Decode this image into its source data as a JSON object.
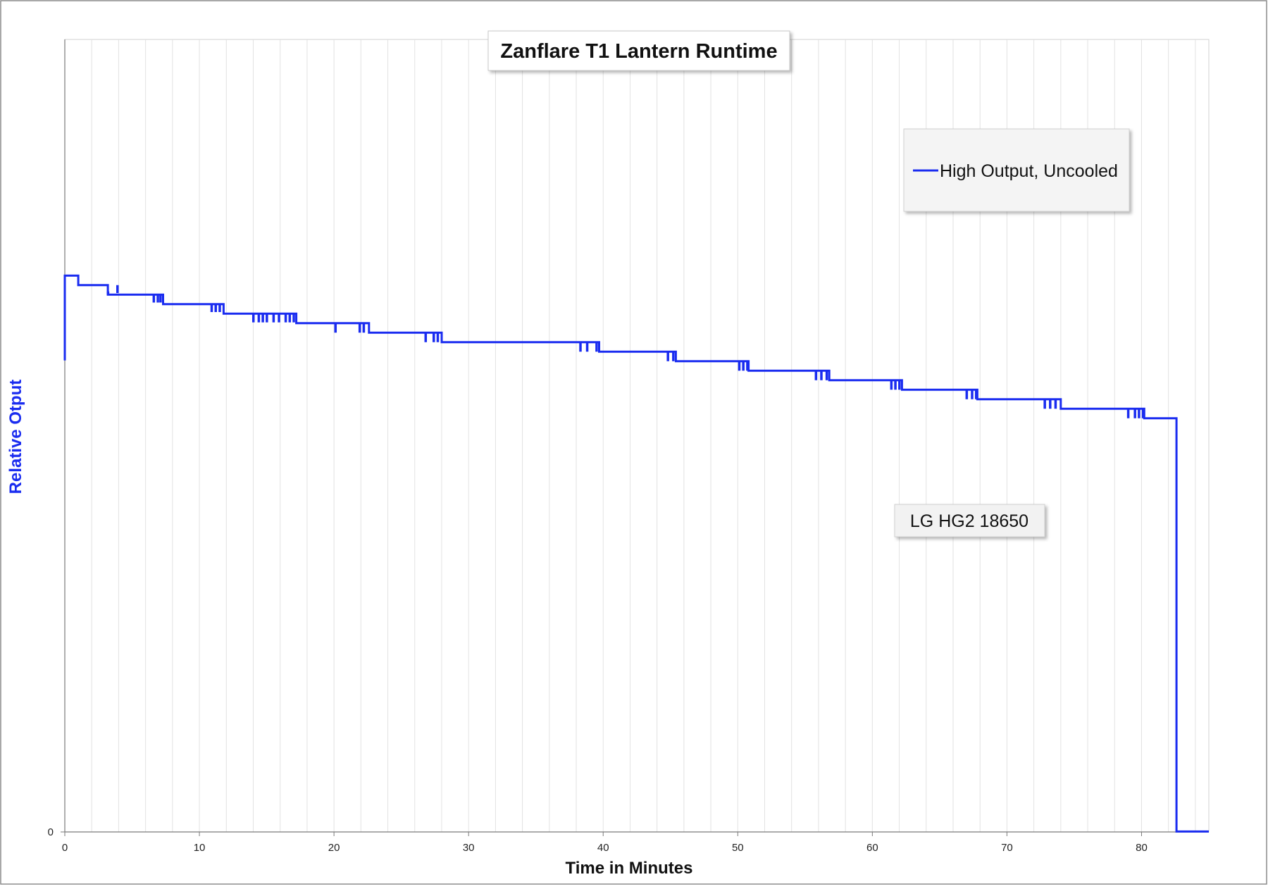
{
  "colors": {
    "series": "#1a2cf0",
    "grid": "#e2e2e2",
    "axis": "#7a7a7a",
    "ylabel": "#1a2cf0",
    "box_fill": "#f2f2f2",
    "legend_fill": "#f4f4f4"
  },
  "chart_data": {
    "type": "line",
    "title": "Zanflare T1 Lantern Runtime",
    "xlabel": "Time in Minutes",
    "ylabel": "Relative Otput",
    "annotation": "LG HG2 18650",
    "legend_position": "top-right",
    "grid": "vertical-minor",
    "xlim": [
      0,
      85
    ],
    "ylim": [
      0,
      100
    ],
    "x_ticks": [
      0,
      10,
      20,
      30,
      40,
      50,
      60,
      70,
      80
    ],
    "x_tick_labels": [
      "0",
      "10",
      "20",
      "30",
      "40",
      "50",
      "60",
      "70",
      "80"
    ],
    "y_ticks": [
      0
    ],
    "y_tick_labels": [
      "0"
    ],
    "series": [
      {
        "name": "High Output, Uncooled",
        "points": [
          [
            0,
            59.5
          ],
          [
            0,
            70.2
          ],
          [
            1,
            70.2
          ],
          [
            1,
            69.0
          ],
          [
            3.2,
            69.0
          ],
          [
            3.2,
            67.8
          ],
          [
            6.6,
            67.8
          ],
          [
            7.3,
            67.8
          ],
          [
            7.3,
            66.6
          ],
          [
            11.0,
            66.6
          ],
          [
            11.8,
            66.6
          ],
          [
            11.8,
            65.4
          ],
          [
            14.0,
            65.4
          ],
          [
            17.2,
            65.4
          ],
          [
            17.2,
            64.2
          ],
          [
            20.0,
            64.2
          ],
          [
            22.0,
            64.2
          ],
          [
            22.6,
            64.2
          ],
          [
            22.6,
            63.0
          ],
          [
            26.8,
            63.0
          ],
          [
            28.0,
            63.0
          ],
          [
            28.0,
            61.8
          ],
          [
            38.2,
            61.8
          ],
          [
            39.7,
            61.8
          ],
          [
            39.7,
            60.6
          ],
          [
            44.8,
            60.6
          ],
          [
            45.4,
            60.6
          ],
          [
            45.4,
            59.4
          ],
          [
            50.0,
            59.4
          ],
          [
            50.8,
            59.4
          ],
          [
            50.8,
            58.2
          ],
          [
            55.8,
            58.2
          ],
          [
            56.8,
            58.2
          ],
          [
            56.8,
            57.0
          ],
          [
            61.4,
            57.0
          ],
          [
            62.2,
            57.0
          ],
          [
            62.2,
            55.8
          ],
          [
            67.0,
            55.8
          ],
          [
            67.8,
            55.8
          ],
          [
            67.8,
            54.6
          ],
          [
            72.8,
            54.6
          ],
          [
            74.0,
            54.6
          ],
          [
            74.0,
            53.4
          ],
          [
            78.8,
            53.4
          ],
          [
            80.2,
            53.4
          ],
          [
            80.2,
            52.2
          ],
          [
            82.6,
            52.2
          ],
          [
            82.6,
            0.05
          ],
          [
            85,
            0.05
          ]
        ],
        "dips": [
          [
            3.2,
            68.2,
            67.8
          ],
          [
            3.9,
            69.0,
            68.0
          ],
          [
            6.6,
            67.8,
            66.8
          ],
          [
            6.9,
            67.8,
            66.8
          ],
          [
            7.1,
            67.8,
            66.8
          ],
          [
            10.9,
            66.6,
            65.6
          ],
          [
            11.2,
            66.6,
            65.6
          ],
          [
            11.5,
            66.6,
            65.6
          ],
          [
            14.0,
            65.4,
            64.3
          ],
          [
            14.4,
            65.4,
            64.3
          ],
          [
            14.7,
            65.4,
            64.3
          ],
          [
            15.0,
            65.4,
            64.3
          ],
          [
            15.5,
            65.4,
            64.3
          ],
          [
            15.9,
            65.4,
            64.3
          ],
          [
            16.4,
            65.4,
            64.3
          ],
          [
            16.7,
            65.4,
            64.3
          ],
          [
            17.0,
            65.4,
            64.3
          ],
          [
            20.1,
            64.2,
            63.0
          ],
          [
            21.9,
            64.2,
            63.0
          ],
          [
            22.2,
            64.2,
            63.0
          ],
          [
            26.8,
            63.0,
            61.8
          ],
          [
            27.4,
            63.0,
            61.8
          ],
          [
            27.7,
            63.0,
            61.8
          ],
          [
            38.3,
            61.8,
            60.6
          ],
          [
            38.8,
            61.8,
            60.6
          ],
          [
            39.5,
            61.8,
            60.6
          ],
          [
            44.8,
            60.6,
            59.4
          ],
          [
            45.2,
            60.6,
            59.4
          ],
          [
            50.1,
            59.4,
            58.2
          ],
          [
            50.4,
            59.4,
            58.2
          ],
          [
            50.7,
            59.4,
            58.2
          ],
          [
            55.8,
            58.2,
            57.0
          ],
          [
            56.2,
            58.2,
            57.0
          ],
          [
            56.6,
            58.2,
            57.0
          ],
          [
            61.4,
            57.0,
            55.8
          ],
          [
            61.7,
            57.0,
            55.8
          ],
          [
            62.0,
            57.0,
            55.8
          ],
          [
            67.0,
            55.8,
            54.6
          ],
          [
            67.4,
            55.8,
            54.6
          ],
          [
            67.7,
            55.8,
            54.6
          ],
          [
            72.8,
            54.6,
            53.4
          ],
          [
            73.2,
            54.6,
            53.4
          ],
          [
            73.6,
            54.6,
            53.4
          ],
          [
            79.0,
            53.4,
            52.2
          ],
          [
            79.5,
            53.4,
            52.2
          ],
          [
            79.8,
            53.4,
            52.2
          ],
          [
            80.1,
            53.4,
            52.2
          ]
        ]
      }
    ]
  }
}
